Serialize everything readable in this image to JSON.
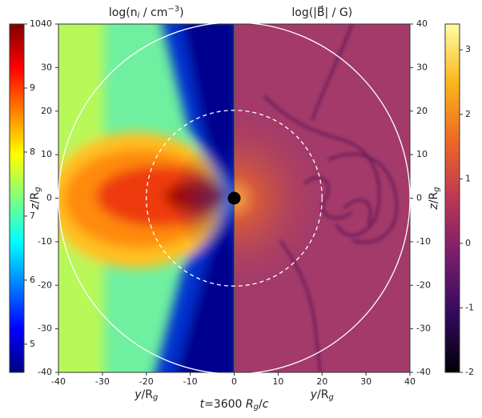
{
  "chart_data": [
    {
      "type": "image",
      "title": [
        "log(n",
        "i",
        " / cm",
        "−3",
        ")"
      ],
      "colormap": "jet",
      "clim": [
        4.56,
        10
      ],
      "cticks": [
        5,
        6,
        7,
        8,
        9,
        10
      ],
      "xlim": [
        -40,
        0
      ],
      "xticks": [
        -40,
        -30,
        -20,
        -10
      ],
      "ylim": [
        -40,
        40
      ],
      "yticks": [
        -40,
        -30,
        -20,
        -10,
        0,
        10,
        20,
        30,
        40
      ],
      "xlabel": [
        "y",
        "/R",
        "g"
      ],
      "ylabel": [
        "z",
        "/R",
        "g"
      ]
    },
    {
      "type": "image",
      "title": [
        "log(|B⃗| / G)"
      ],
      "colormap": "inferno",
      "clim": [
        -2,
        3.4
      ],
      "cticks": [
        -2,
        -1,
        0,
        1,
        2,
        3
      ],
      "xlim": [
        0,
        40
      ],
      "xticks": [
        0,
        10,
        20,
        30,
        40
      ],
      "ylim": [
        -40,
        40
      ],
      "yticks": [
        -40,
        -30,
        -20,
        -10,
        0,
        10,
        20,
        30,
        40
      ],
      "xlabel": [
        "y",
        "/R",
        "g"
      ],
      "ylabel": [
        "z",
        "/R",
        "g"
      ]
    }
  ],
  "annotation": [
    "t",
    "=3600 ",
    "R",
    "g",
    "/",
    "c"
  ]
}
